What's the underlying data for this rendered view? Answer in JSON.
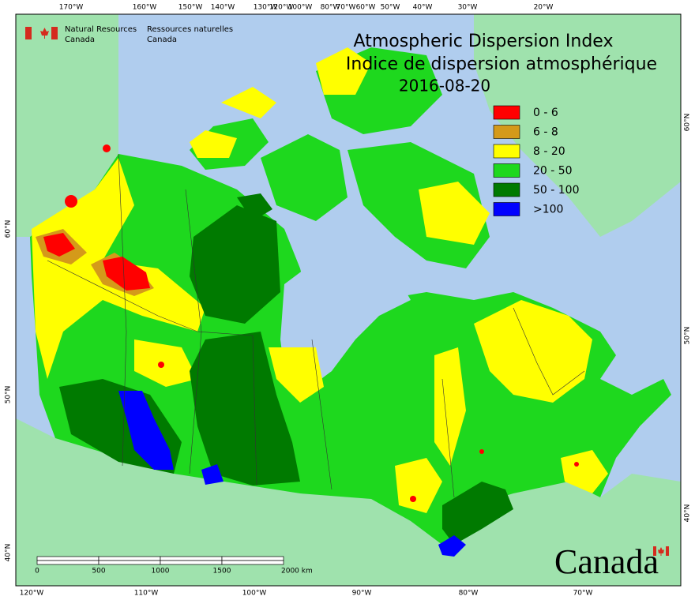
{
  "agency": {
    "en_line1": "Natural Resources",
    "en_line2": "Canada",
    "fr_line1": "Ressources naturelles",
    "fr_line2": "Canada"
  },
  "title": {
    "line1": "Atmospheric Dispersion Index",
    "line2": "Indice de dispersion atmosphérique",
    "date": "2016-08-20"
  },
  "legend": [
    {
      "label": "0 - 6",
      "color": "#ff0000"
    },
    {
      "label": "6 - 8",
      "color": "#d49a1a"
    },
    {
      "label": "8 - 20",
      "color": "#ffff00"
    },
    {
      "label": "20 - 50",
      "color": "#1ed81e"
    },
    {
      "label": "50 - 100",
      "color": "#007a00"
    },
    {
      "label": ">100",
      "color": "#0000ff"
    }
  ],
  "graticule": {
    "top": [
      "170°W",
      "160°W",
      "150°W",
      "140°W",
      "130°W",
      "120°W",
      "100°W",
      "80°W",
      "70°W",
      "60°W",
      "50°W",
      "40°W",
      "30°W",
      "20°W"
    ],
    "bottom": [
      "120°W",
      "110°W",
      "100°W",
      "90°W",
      "80°W",
      "70°W"
    ],
    "left": [
      "60°N",
      "50°N",
      "40°N"
    ],
    "right": [
      "60°N",
      "50°N",
      "40°N"
    ]
  },
  "scale_bar": [
    "0",
    "500",
    "1000",
    "1500",
    "2000 km"
  ],
  "wordmark": "Canada"
}
